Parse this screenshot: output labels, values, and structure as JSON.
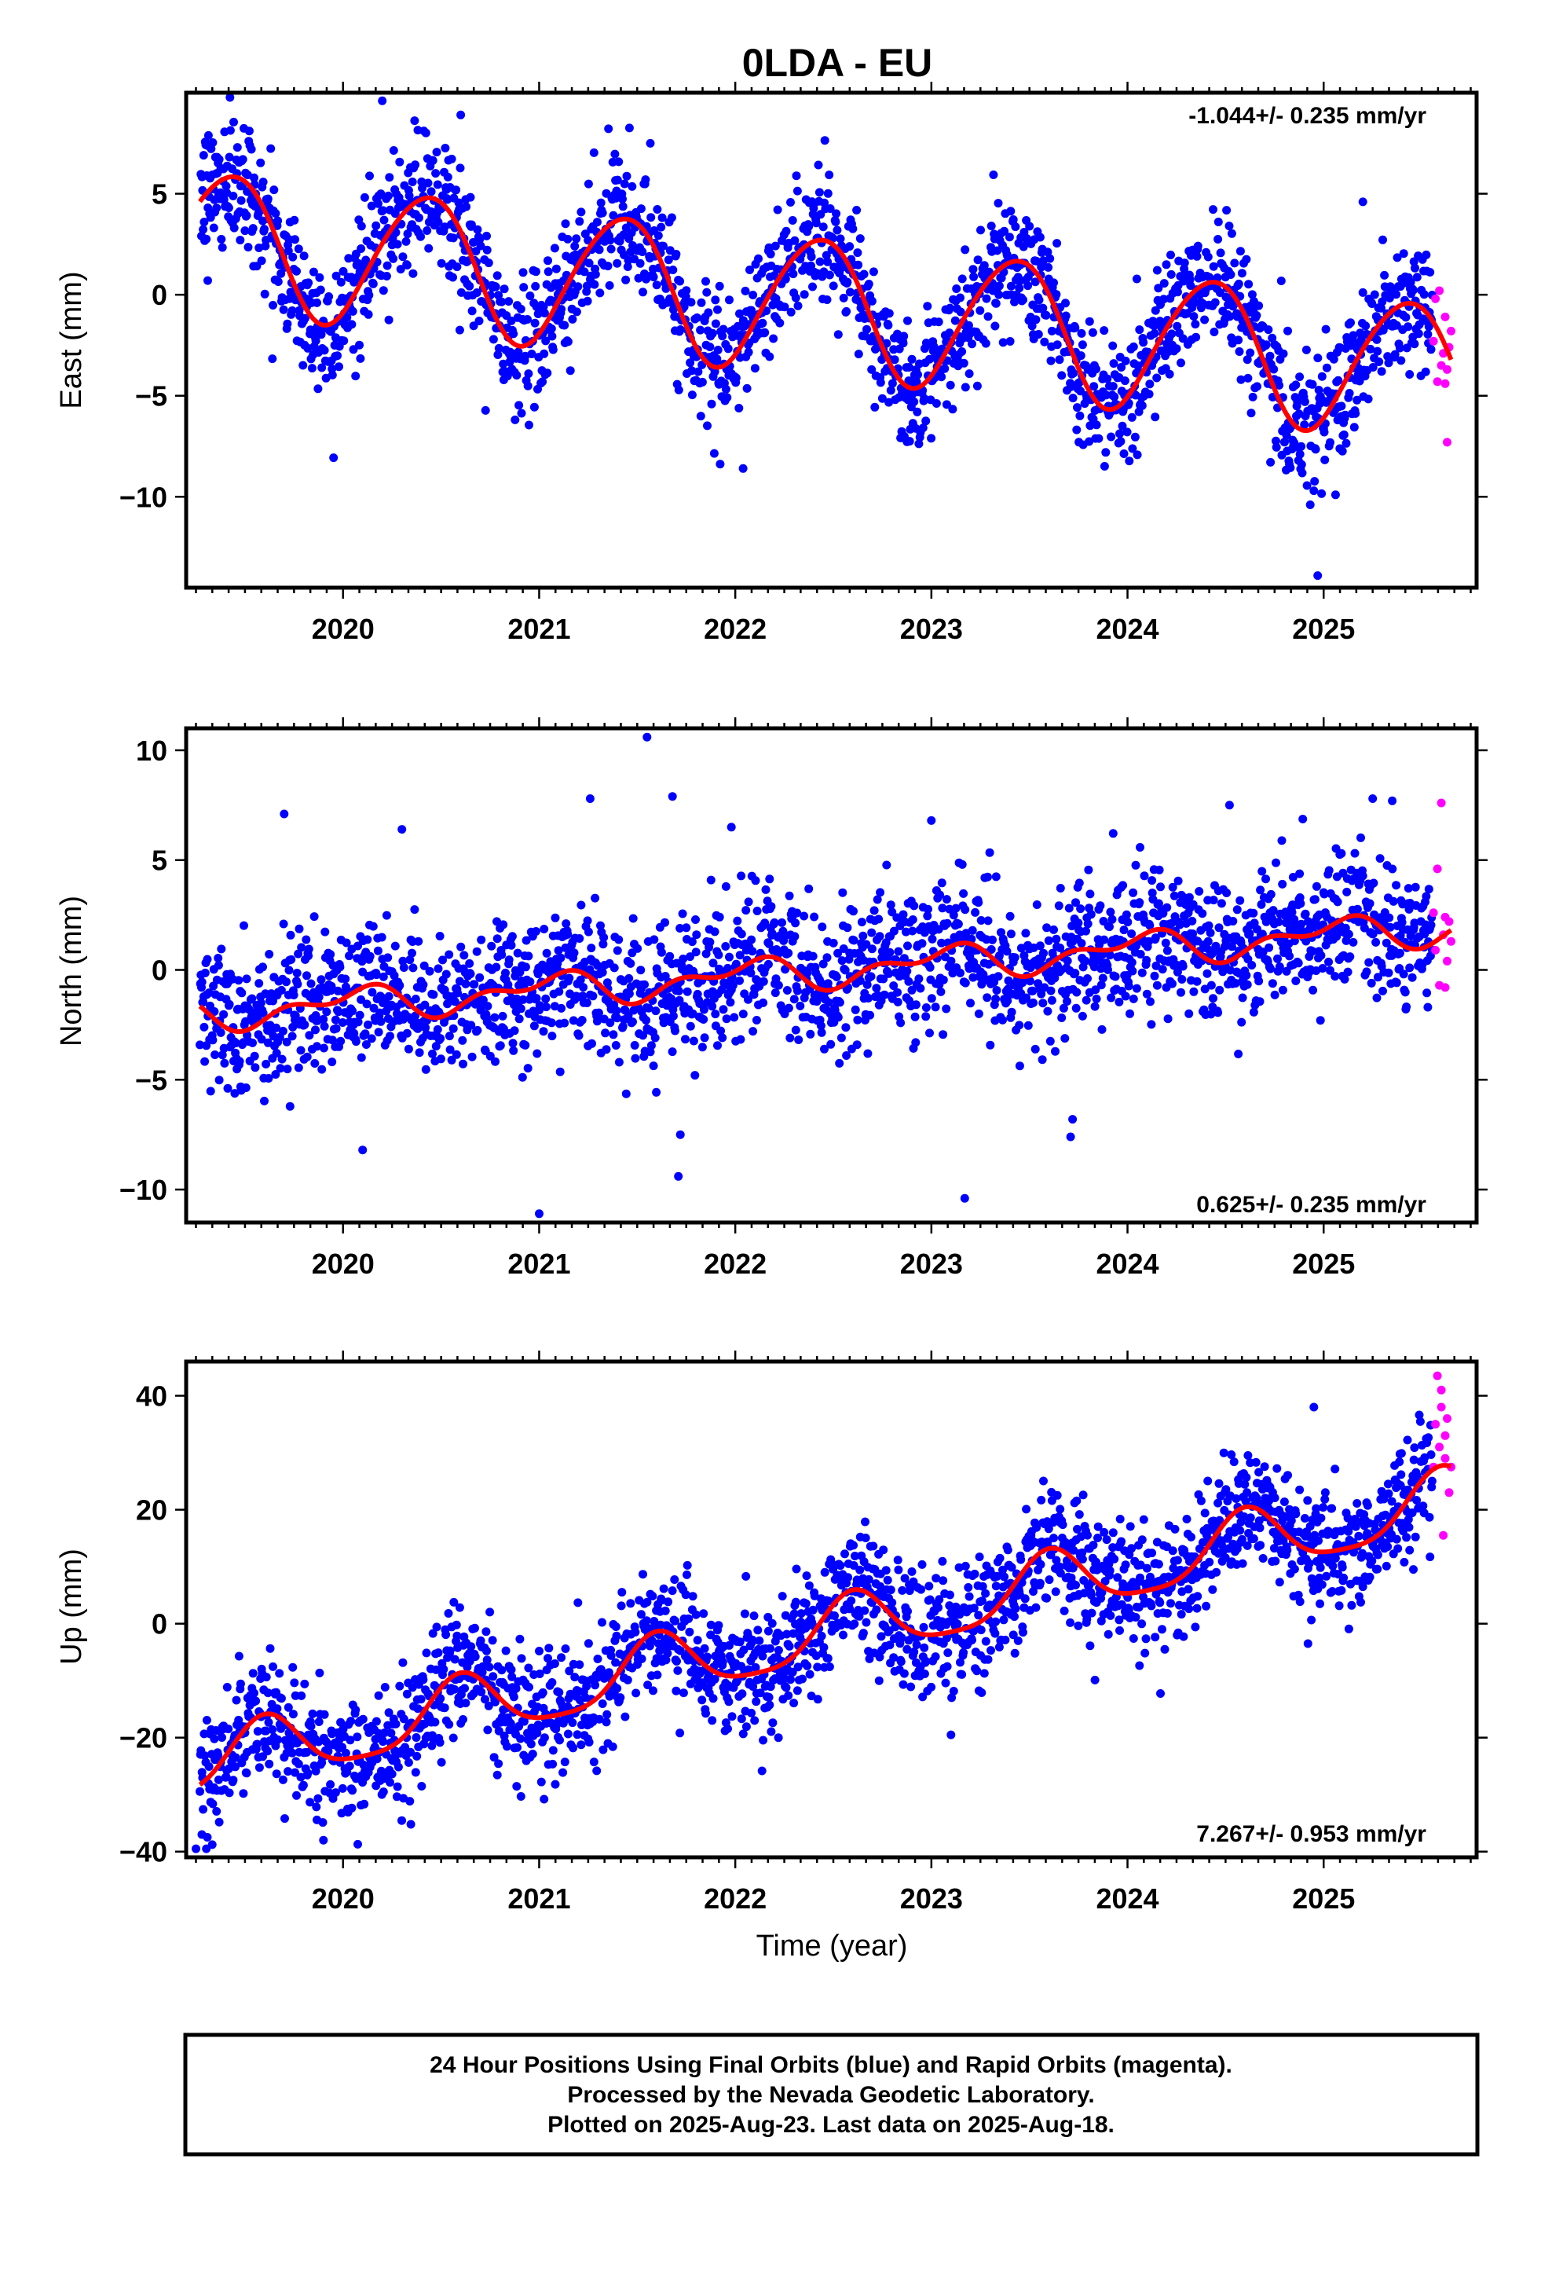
{
  "title": "0LDA - EU",
  "x_axis_label": "Time (year)",
  "footer": {
    "line1": "24 Hour Positions Using Final Orbits (blue) and Rapid Orbits (magenta).",
    "line2": "Processed by the Nevada Geodetic Laboratory.",
    "line3": "Plotted on 2025-Aug-23. Last data on 2025-Aug-18."
  },
  "colors": {
    "final_orbits": "#0000ff",
    "rapid_orbits": "#ff00ff",
    "model_fit": "#ff0000",
    "frame": "#000000"
  },
  "chart_data": [
    {
      "type": "scatter",
      "panel": "east",
      "ylabel": "East (mm)",
      "rate_text": "-1.044+/- 0.235 mm/yr",
      "rate_position": "top-right",
      "xlim": [
        2019.2,
        2025.78
      ],
      "ylim": [
        -14.5,
        10
      ],
      "xticks": [
        2020,
        2021,
        2022,
        2023,
        2024,
        2025
      ],
      "yticks": [
        -10,
        -5,
        0,
        5
      ],
      "ytick_labels": [
        "−10",
        "−5",
        "0",
        "5"
      ],
      "grid": false,
      "fit": {
        "offset": -0.6,
        "trend": -1.044,
        "amp_annual": 3.4,
        "annual_peak": 0.42,
        "amp_semiannual": 0.3,
        "semi_peak": 0.1,
        "ref_year": 2022.5
      },
      "scatter_sigma": 1.6,
      "rapid_points": [
        [
          2025.56,
          -2.3
        ],
        [
          2025.57,
          -0.2
        ],
        [
          2025.58,
          -4.3
        ],
        [
          2025.59,
          0.2
        ],
        [
          2025.6,
          -3.5
        ],
        [
          2025.61,
          -2.9
        ],
        [
          2025.62,
          -1.1
        ],
        [
          2025.62,
          -4.4
        ],
        [
          2025.63,
          -7.3
        ],
        [
          2025.63,
          -3.7
        ],
        [
          2025.64,
          -2.6
        ],
        [
          2025.65,
          -1.8
        ]
      ],
      "outliers": [
        [
          2020.2,
          9.6
        ],
        [
          2020.6,
          8.9
        ],
        [
          2024.97,
          -13.9
        ],
        [
          2022.04,
          -8.6
        ],
        [
          2024.95,
          -9.7
        ],
        [
          2025.2,
          4.6
        ],
        [
          2019.31,
          0.7
        ]
      ]
    },
    {
      "type": "scatter",
      "panel": "north",
      "ylabel": "North (mm)",
      "rate_text": "0.625+/- 0.235 mm/yr",
      "rate_position": "bottom-right",
      "xlim": [
        2019.2,
        2025.78
      ],
      "ylim": [
        -11.5,
        11
      ],
      "xticks": [
        2020,
        2021,
        2022,
        2023,
        2024,
        2025
      ],
      "yticks": [
        -10,
        -5,
        0,
        5,
        10
      ],
      "ytick_labels": [
        "−10",
        "−5",
        "0",
        "5",
        "10"
      ],
      "grid": false,
      "fit": {
        "offset": 0.0,
        "trend": 0.625,
        "amp_annual": 0.6,
        "annual_peak": 0.05,
        "amp_semiannual": 0.4,
        "semi_peak": 0.2,
        "ref_year": 2022.5
      },
      "scatter_sigma": 1.6,
      "rapid_points": [
        [
          2025.56,
          2.6
        ],
        [
          2025.57,
          0.9
        ],
        [
          2025.58,
          4.6
        ],
        [
          2025.59,
          -0.7
        ],
        [
          2025.6,
          7.6
        ],
        [
          2025.61,
          1.6
        ],
        [
          2025.62,
          2.4
        ],
        [
          2025.62,
          -0.8
        ],
        [
          2025.63,
          0.4
        ],
        [
          2025.64,
          2.2
        ],
        [
          2025.65,
          1.3
        ]
      ],
      "outliers": [
        [
          2021.0,
          -11.1
        ],
        [
          2021.55,
          10.6
        ],
        [
          2019.7,
          7.1
        ],
        [
          2021.71,
          -9.4
        ],
        [
          2021.72,
          -7.5
        ],
        [
          2023.17,
          -10.4
        ],
        [
          2023.72,
          -6.8
        ],
        [
          2023.71,
          -7.6
        ],
        [
          2021.26,
          7.8
        ],
        [
          2021.68,
          7.9
        ],
        [
          2020.1,
          -8.2
        ],
        [
          2024.52,
          7.5
        ],
        [
          2025.25,
          7.8
        ],
        [
          2025.35,
          7.7
        ],
        [
          2023.0,
          6.8
        ],
        [
          2021.98,
          6.5
        ],
        [
          2020.3,
          6.4
        ]
      ]
    },
    {
      "type": "scatter",
      "panel": "up",
      "ylabel": "Up (mm)",
      "rate_text": "7.267+/- 0.953 mm/yr",
      "rate_position": "bottom-right",
      "xlim": [
        2019.2,
        2025.78
      ],
      "ylim": [
        -41,
        46
      ],
      "xticks": [
        2020,
        2021,
        2022,
        2023,
        2024,
        2025
      ],
      "yticks": [
        -40,
        -20,
        0,
        20,
        40
      ],
      "ytick_labels": [
        "−40",
        "−20",
        "0",
        "20",
        "40"
      ],
      "grid": false,
      "fit": {
        "offset": -1.5,
        "trend": 7.267,
        "amp_annual": 5.5,
        "annual_peak": 0.6,
        "amp_semiannual": 1.2,
        "semi_peak": 0.6,
        "ref_year": 2022.5
      },
      "scatter_sigma": 5.5,
      "rapid_points": [
        [
          2025.56,
          27.5
        ],
        [
          2025.57,
          35.0
        ],
        [
          2025.58,
          43.5
        ],
        [
          2025.59,
          31.0
        ],
        [
          2025.6,
          38.0
        ],
        [
          2025.6,
          41.0
        ],
        [
          2025.61,
          15.5
        ],
        [
          2025.62,
          33.0
        ],
        [
          2025.62,
          29.0
        ],
        [
          2025.63,
          36.0
        ],
        [
          2025.64,
          23.0
        ],
        [
          2025.65,
          27.5
        ]
      ],
      "outliers": [
        [
          2019.25,
          -39.5
        ],
        [
          2019.28,
          -37.0
        ],
        [
          2023.1,
          -19.5
        ],
        [
          2024.92,
          -3.5
        ],
        [
          2024.95,
          38.0
        ],
        [
          2022.22,
          -20.0
        ],
        [
          2019.9,
          -38.0
        ]
      ]
    }
  ]
}
